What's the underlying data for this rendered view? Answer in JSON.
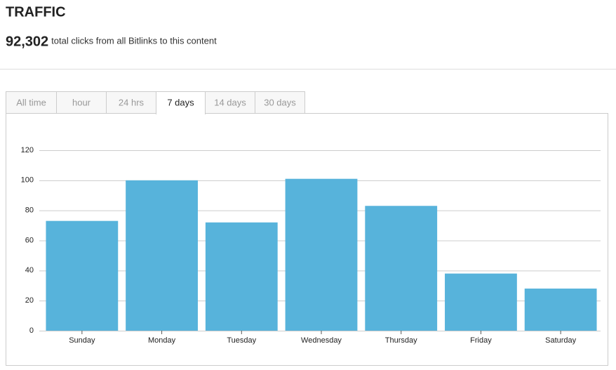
{
  "header": {
    "title": "TRAFFIC",
    "total": "92,302",
    "total_caption": "total clicks from all Bitlinks to this content"
  },
  "tabs": [
    {
      "label": "All time"
    },
    {
      "label": "hour"
    },
    {
      "label": "24 hrs"
    },
    {
      "label": "7 days",
      "active": true
    },
    {
      "label": "14 days"
    },
    {
      "label": "30 days"
    }
  ],
  "chart_data": {
    "type": "bar",
    "categories": [
      "Sunday",
      "Monday",
      "Tuesday",
      "Wednesday",
      "Thursday",
      "Friday",
      "Saturday"
    ],
    "values": [
      73,
      100,
      72,
      101,
      83,
      38,
      28
    ],
    "color": "#57b3db",
    "ylim": [
      0,
      120
    ],
    "yticks": [
      0,
      20,
      40,
      60,
      80,
      100,
      120
    ],
    "grid": true
  }
}
